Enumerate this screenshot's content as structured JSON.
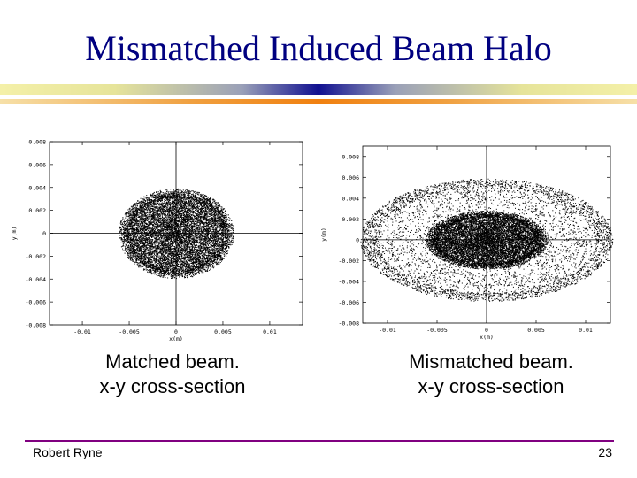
{
  "slide": {
    "title": "Mismatched Induced Beam Halo",
    "author": "Robert Ryne",
    "page_number": "23",
    "colors": {
      "title": "#000080",
      "footer_line": "#800080"
    }
  },
  "chart_data": [
    {
      "type": "scatter",
      "caption_line1": "Matched beam.",
      "caption_line2": "x-y cross-section",
      "xlabel": "x(m)",
      "ylabel": "y(m)",
      "xlim": [
        -0.0135,
        0.0135
      ],
      "ylim": [
        -0.008,
        0.008
      ],
      "xticks": [
        -0.01,
        -0.005,
        0,
        0.005,
        0.01
      ],
      "xtick_labels": [
        "-0.01",
        "-0.005",
        "0",
        "0.005",
        "0.01"
      ],
      "yticks": [
        0.008,
        0.006,
        0.004,
        0.002,
        0,
        -0.002,
        -0.004,
        -0.006,
        -0.008
      ],
      "ytick_labels": [
        "0.008",
        "0.006",
        "0.004",
        "0.002",
        "0",
        "-0.002",
        "-0.004",
        "-0.006",
        "-0.008"
      ],
      "grid": false,
      "distribution": {
        "core_rx": 0.0055,
        "core_ry": 0.0035,
        "halo_rx": 0.0,
        "halo_ry": 0.0,
        "halo_fraction": 0.0
      }
    },
    {
      "type": "scatter",
      "caption_line1": "Mismatched beam.",
      "caption_line2": "x-y cross-section",
      "xlabel": "x(m)",
      "ylabel": "y(m)",
      "xlim": [
        -0.0125,
        0.0125
      ],
      "ylim": [
        -0.008,
        0.009
      ],
      "xticks": [
        -0.01,
        -0.005,
        0,
        0.005,
        0.01
      ],
      "xtick_labels": [
        "-0.01",
        "-0.005",
        "0",
        "0.005",
        "0.01"
      ],
      "yticks": [
        0.008,
        0.006,
        0.004,
        0.002,
        0,
        -0.002,
        -0.004,
        -0.006,
        -0.008
      ],
      "ytick_labels": [
        "0.008",
        "0.006",
        "0.004",
        "0.002",
        "0",
        "-0.002",
        "-0.004",
        "-0.006",
        "-0.008"
      ],
      "grid": false,
      "distribution": {
        "core_rx": 0.0055,
        "core_ry": 0.0025,
        "halo_rx": 0.0125,
        "halo_ry": 0.0055,
        "halo_fraction": 0.3
      }
    }
  ]
}
